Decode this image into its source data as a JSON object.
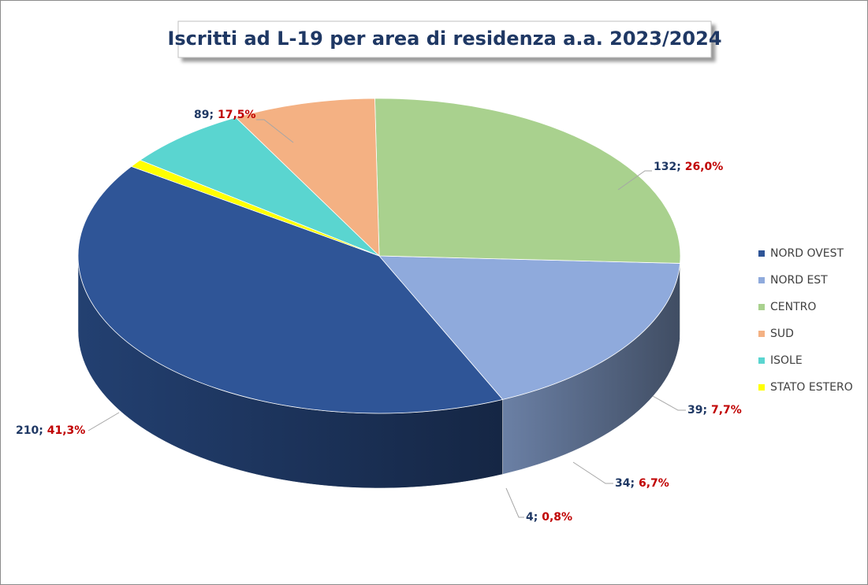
{
  "chart_data": {
    "type": "pie3d",
    "title": "Iscritti ad L-19 per area di residenza a.a. 2023/2024",
    "categories": [
      "NORD OVEST",
      "NORD EST",
      "CENTRO",
      "SUD",
      "ISOLE",
      "STATO ESTERO"
    ],
    "values": [
      210,
      89,
      132,
      39,
      34,
      4
    ],
    "percentages": [
      41.3,
      17.5,
      26.0,
      7.7,
      6.7,
      0.8
    ],
    "percentage_labels": [
      "41,3%",
      "17,5%",
      "26,0%",
      "7,7%",
      "6,7%",
      "0,8%"
    ],
    "label_separator": "; ",
    "colors": [
      "#2f5597",
      "#8faadc",
      "#a9d18e",
      "#f4b183",
      "#5ad5d0",
      "#ffff00"
    ],
    "legend": "right"
  }
}
